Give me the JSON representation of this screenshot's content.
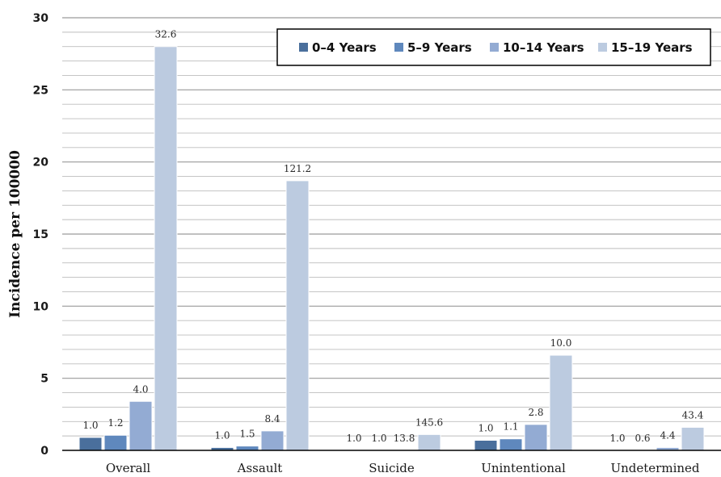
{
  "chart_data": {
    "type": "bar",
    "ylabel": "Incidence per 100000",
    "xlabel": "",
    "ylim": [
      0,
      30
    ],
    "yticks": [
      0,
      5,
      10,
      15,
      20,
      25,
      30
    ],
    "grid": true,
    "legend_position": "top-right",
    "categories": [
      "Overall",
      "Assault",
      "Suicide",
      "Unintentional",
      "Undetermined"
    ],
    "series": [
      {
        "name": "0–4 Years",
        "color": "#4a6f9c",
        "values": [
          0.9,
          0.2,
          0.0,
          0.7,
          0.0
        ],
        "labels": [
          "1.0",
          "1.0",
          "1.0",
          "1.0",
          "1.0"
        ]
      },
      {
        "name": "5–9 Years",
        "color": "#5f88bd",
        "values": [
          1.05,
          0.3,
          0.0,
          0.8,
          0.0
        ],
        "labels": [
          "1.2",
          "1.5",
          "1.0",
          "1.1",
          "0.6"
        ]
      },
      {
        "name": "10–14 Years",
        "color": "#93abd3",
        "values": [
          3.4,
          1.35,
          0.0,
          1.8,
          0.2
        ],
        "labels": [
          "4.0",
          "8.4",
          "13.8",
          "2.8",
          "4.4"
        ]
      },
      {
        "name": "15–19 Years",
        "color": "#bccbe0",
        "values": [
          28.0,
          18.7,
          1.1,
          6.6,
          1.6
        ],
        "labels": [
          "32.6",
          "121.2",
          "145.6",
          "10.0",
          "43.4"
        ]
      }
    ]
  }
}
